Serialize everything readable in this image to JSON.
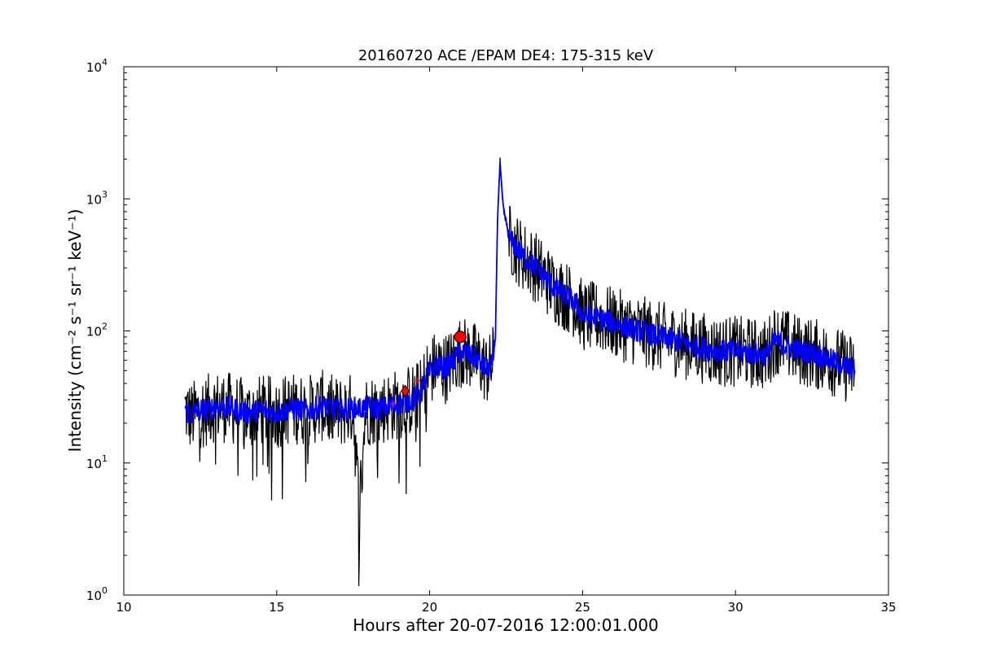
{
  "chart_data": {
    "type": "line",
    "title": "20160720 ACE /EPAM DE4: 175-315 keV",
    "xlabel": "Hours after 20-07-2016 12:00:01.000",
    "ylabel": "Intensity (cm⁻² s⁻¹ sr⁻¹ keV⁻¹)",
    "xlim": [
      10,
      35
    ],
    "ylim": [
      1,
      10000
    ],
    "yscale": "log",
    "grid": false,
    "x_ticks": [
      "10",
      "15",
      "20",
      "25",
      "30",
      "35"
    ],
    "y_ticks": [
      {
        "base": "10",
        "exp": "0"
      },
      {
        "base": "10",
        "exp": "1"
      },
      {
        "base": "10",
        "exp": "2"
      },
      {
        "base": "10",
        "exp": "3"
      },
      {
        "base": "10",
        "exp": "4"
      }
    ],
    "series": [
      {
        "color": "#000000",
        "x": [
          12.0,
          12.2,
          12.4,
          12.7,
          13.0,
          13.5,
          14.0,
          14.5,
          15.0,
          15.5,
          16.0,
          16.5,
          17.0,
          17.5,
          17.7,
          17.9,
          18.5,
          19.0,
          19.4,
          19.7,
          19.9,
          20.2,
          20.5,
          20.8,
          21.0,
          21.3,
          21.6,
          21.9,
          22.05,
          22.15,
          22.22,
          22.3,
          22.4,
          22.6,
          23.0,
          23.5,
          24.0,
          24.5,
          24.8,
          25.0,
          25.5,
          26.0,
          26.5,
          27.0,
          27.5,
          28.0,
          28.5,
          29.0,
          29.5,
          30.0,
          30.5,
          31.0,
          31.3,
          31.6,
          32.0,
          32.5,
          33.0,
          33.5,
          33.9
        ],
        "values": [
          26,
          22,
          24,
          25,
          27,
          26,
          23,
          25,
          24,
          26,
          25,
          27,
          24,
          26,
          4.4,
          25,
          26,
          28,
          30,
          33,
          45,
          55,
          52,
          60,
          70,
          66,
          60,
          50,
          55,
          90,
          700,
          1900,
          900,
          500,
          380,
          300,
          220,
          180,
          160,
          130,
          125,
          115,
          105,
          98,
          90,
          85,
          78,
          74,
          70,
          70,
          68,
          65,
          88,
          80,
          72,
          68,
          62,
          55,
          50
        ],
        "noise": 0.55
      },
      {
        "color": "#0000ff",
        "x": [
          12.0,
          12.2,
          12.4,
          12.7,
          13.0,
          13.5,
          14.0,
          14.5,
          15.0,
          15.5,
          16.0,
          16.5,
          17.0,
          17.5,
          17.9,
          18.5,
          19.0,
          19.4,
          19.7,
          19.9,
          20.2,
          20.5,
          20.8,
          21.0,
          21.3,
          21.6,
          21.9,
          22.05,
          22.15,
          22.22,
          22.3,
          22.4,
          22.6,
          23.0,
          23.5,
          24.0,
          24.5,
          24.8,
          25.0,
          25.5,
          26.0,
          26.5,
          27.0,
          27.5,
          28.0,
          28.5,
          29.0,
          29.5,
          30.0,
          30.5,
          31.0,
          31.3,
          31.6,
          32.0,
          32.5,
          33.0,
          33.5,
          33.9
        ],
        "values": [
          26,
          23,
          25,
          25,
          27,
          26,
          24,
          25,
          24,
          26,
          25,
          27,
          25,
          26,
          26,
          26,
          28,
          30,
          33,
          45,
          55,
          52,
          60,
          70,
          66,
          60,
          50,
          55,
          90,
          700,
          1850,
          900,
          500,
          380,
          300,
          220,
          180,
          160,
          130,
          125,
          115,
          105,
          98,
          90,
          85,
          78,
          74,
          70,
          70,
          68,
          65,
          85,
          78,
          72,
          68,
          62,
          55,
          50
        ],
        "noise": 0.18
      }
    ],
    "markers": [
      {
        "shape": "circle",
        "color": "#ff0000",
        "x": 21.0,
        "y": 90
      },
      {
        "shape": "diamond",
        "color": "#ff0000",
        "x": 19.2,
        "y": 35
      },
      {
        "shape": "plus",
        "color": "#ff00ff",
        "x": 18.8,
        "y": 28
      },
      {
        "shape": "plus",
        "color": "#ff0000",
        "x": 19.6,
        "y": 42
      }
    ]
  }
}
